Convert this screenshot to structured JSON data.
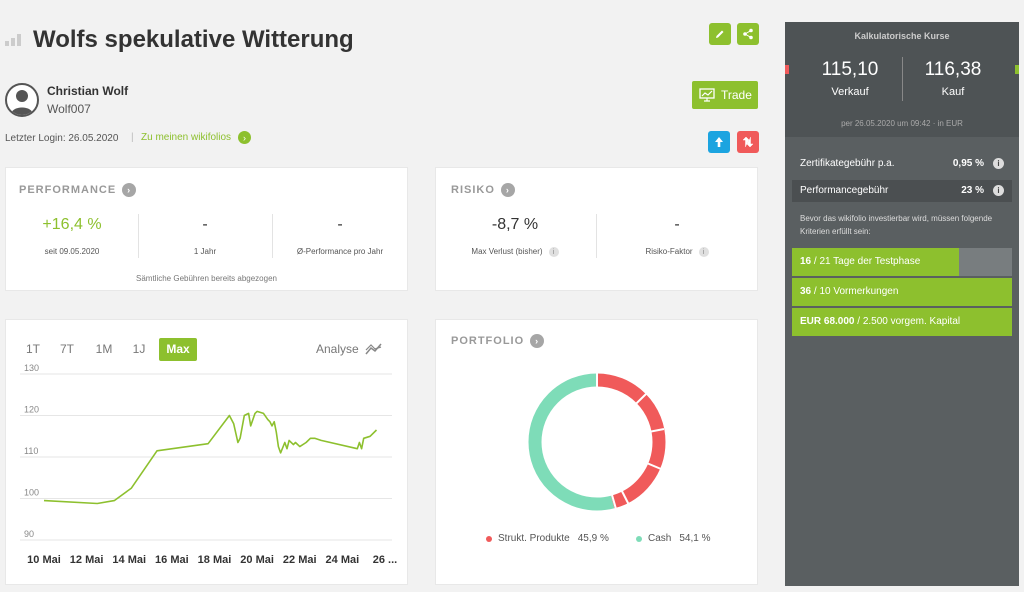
{
  "header": {
    "title": "Wolfs spekulative Witterung"
  },
  "user": {
    "name": "Christian Wolf",
    "handle": "Wolf007"
  },
  "login": {
    "label": "Letzter Login: 26.05.2020",
    "link": "Zu meinen wikifolios"
  },
  "trade": {
    "label": "Trade"
  },
  "performance": {
    "title": "PERFORMANCE",
    "items": [
      {
        "value": "+16,4 %",
        "label": "seit 09.05.2020"
      },
      {
        "value": "-",
        "label": "1 Jahr"
      },
      {
        "value": "-",
        "label": "Ø-Performance pro Jahr"
      }
    ],
    "note": "Sämtliche Gebühren bereits abgezogen"
  },
  "risiko": {
    "title": "RISIKO",
    "items": [
      {
        "value": "-8,7 %",
        "label": "Max Verlust (bisher)"
      },
      {
        "value": "-",
        "label": "Risiko-Faktor"
      }
    ]
  },
  "chart": {
    "timeframes": [
      "1T",
      "7T",
      "1M",
      "1J",
      "Max"
    ],
    "active_timeframe": "Max",
    "analyse_label": "Analyse"
  },
  "chart_data": {
    "type": "line",
    "ylim": [
      90,
      130
    ],
    "yticks": [
      90,
      100,
      110,
      120,
      130
    ],
    "xticks": [
      "10 Mai",
      "12 Mai",
      "14 Mai",
      "16 Mai",
      "18 Mai",
      "20 Mai",
      "22 Mai",
      "24 Mai",
      "26 ..."
    ],
    "series": [
      {
        "x": [
          10,
          12.5,
          13.3,
          14.1,
          15.3,
          17.7,
          18.7,
          18.9,
          19.1,
          19.2,
          19.4,
          19.6,
          19.7,
          19.9,
          20.0,
          20.3,
          20.5,
          20.6,
          20.7,
          20.8,
          20.9,
          21.0,
          21.1,
          21.3,
          21.4,
          21.5,
          21.7,
          21.8,
          22.0,
          22.3,
          22.5,
          22.7,
          23.0,
          24.7,
          24.8,
          24.9,
          25.0,
          25.3,
          25.6
        ],
        "y": [
          99.5,
          98.8,
          99.5,
          102.5,
          111.5,
          113.2,
          120.0,
          118.0,
          113.5,
          114.5,
          120.0,
          120.5,
          117.5,
          120.5,
          121.0,
          120.5,
          119.0,
          118.5,
          117.5,
          118.5,
          116.0,
          112.5,
          111.0,
          113.5,
          112.0,
          114.0,
          113.0,
          113.5,
          112.5,
          113.5,
          114.5,
          114.5,
          114.0,
          112.0,
          113.5,
          112.0,
          114.5,
          115.0,
          116.5
        ]
      }
    ]
  },
  "portfolio": {
    "title": "PORTFOLIO",
    "legend": [
      {
        "name": "Strukt. Produkte",
        "value": "45,9 %",
        "color": "#f05a5a"
      },
      {
        "name": "Cash",
        "value": "54,1 %",
        "color": "#7edcb8"
      }
    ]
  },
  "sidebar": {
    "title": "Kalkulatorische Kurse",
    "sell": {
      "price": "115,10",
      "label": "Verkauf"
    },
    "buy": {
      "price": "116,38",
      "label": "Kauf"
    },
    "date_note": "per 26.05.2020 um 09:42 · in EUR",
    "fees": [
      {
        "label": "Zertifikategebühr p.a.",
        "value": "0,95 %"
      },
      {
        "label": "Performancegebühr",
        "value": "23 %"
      }
    ],
    "criteria_intro": "Bevor das wikifolio investierbar wird, müssen folgende Kriterien erfüllt sein:",
    "criteria": [
      {
        "strong": "16",
        "rest": " / 21 Tage der Testphase",
        "progress": 0.76
      },
      {
        "strong": "36",
        "rest": " / 10 Vormerkungen",
        "progress": 1.0
      },
      {
        "strong": "EUR 68.000",
        "rest": " / 2.500 vorgem. Kapital",
        "progress": 1.0
      }
    ]
  },
  "colors": {
    "green": "#8dc02e",
    "blue": "#1ca4e0",
    "red": "#f05a5a",
    "sidebar": "#5a5f61"
  }
}
